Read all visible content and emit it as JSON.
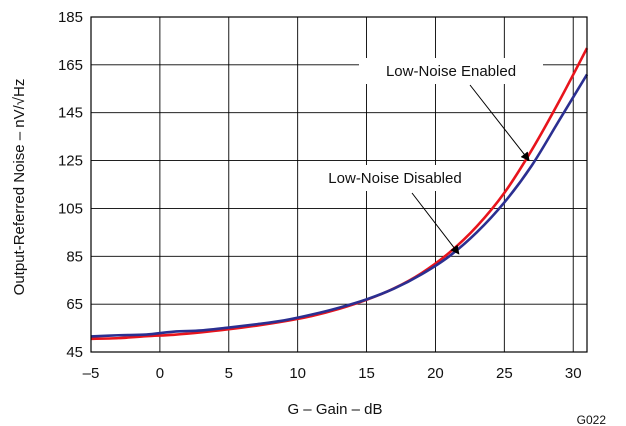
{
  "chart_data": {
    "type": "line",
    "xlabel": "G – Gain – dB",
    "ylabel": "Output-Referred Noise – nV/√Hz",
    "xlim": [
      -5,
      31
    ],
    "ylim": [
      45,
      185
    ],
    "xticks": [
      -5,
      0,
      5,
      10,
      15,
      20,
      25,
      30
    ],
    "yticks": [
      45,
      65,
      85,
      105,
      125,
      145,
      165,
      185
    ],
    "xtick_labels": [
      "–5",
      "0",
      "5",
      "10",
      "15",
      "20",
      "25",
      "30"
    ],
    "ytick_labels": [
      "45",
      "65",
      "85",
      "105",
      "125",
      "145",
      "165",
      "185"
    ],
    "grid": true,
    "figure_code": "G022",
    "series": [
      {
        "name": "Low-Noise Enabled",
        "color": "#e8141c",
        "x": [
          -5,
          -3,
          -1,
          1,
          3,
          5,
          7,
          9,
          11,
          13,
          15,
          17,
          19,
          21,
          23,
          25,
          27,
          29,
          31
        ],
        "y": [
          50.5,
          50.8,
          51.6,
          52.2,
          53.2,
          54.5,
          56.0,
          57.8,
          60.0,
          63.0,
          66.8,
          71.6,
          78.0,
          86.5,
          97.5,
          111.5,
          129.5,
          150.0,
          172.0
        ]
      },
      {
        "name": "Low-Noise Disabled",
        "color": "#2b2f91",
        "x": [
          -5,
          -3,
          -1,
          1,
          3,
          5,
          7,
          9,
          11,
          13,
          15,
          17,
          19,
          21,
          23,
          25,
          27,
          29,
          31
        ],
        "y": [
          51.5,
          52.0,
          52.3,
          53.5,
          54.0,
          55.2,
          56.6,
          58.2,
          60.6,
          63.5,
          67.0,
          71.5,
          77.5,
          85.0,
          95.0,
          107.5,
          123.0,
          142.0,
          161.0
        ]
      }
    ],
    "annotations": [
      {
        "text": "Low-Noise Enabled",
        "arrow_to": [
          26.8,
          125
        ]
      },
      {
        "text": "Low-Noise Disabled",
        "arrow_to": [
          21.7,
          86
        ]
      }
    ]
  }
}
